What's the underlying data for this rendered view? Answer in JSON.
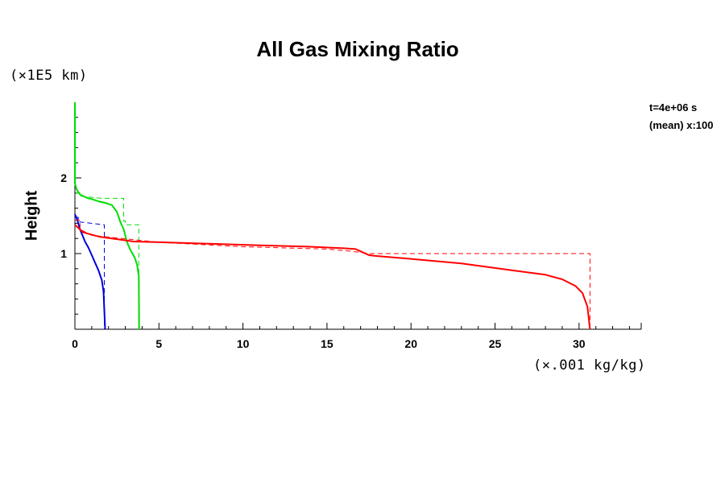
{
  "chart_data": {
    "type": "line",
    "title": "All Gas Mixing Ratio",
    "xlabel": "",
    "ylabel": "Height",
    "x_unit": "(×.001 kg/kg)",
    "y_unit": "(×1E5 km)",
    "xlim": [
      0,
      33.7
    ],
    "ylim": [
      0,
      3.0
    ],
    "x_ticks": [
      0,
      5,
      10,
      15,
      20,
      25,
      30
    ],
    "y_ticks": [
      1,
      2
    ],
    "x_minor_step": 1,
    "y_minor_step": 0.2,
    "grid": false,
    "annotations": [
      "t=4e+06 s",
      "(mean) x:100"
    ],
    "series": [
      {
        "color": "#00dd00",
        "style": "solid",
        "x": [
          0,
          0,
          0.1,
          0.3,
          0.5,
          0.8,
          1.0,
          1.4,
          1.8,
          2.2,
          2.5,
          2.7,
          2.9,
          3.1,
          3.3,
          3.55,
          3.7,
          3.8,
          3.82
        ],
        "y": [
          3.0,
          1.93,
          1.85,
          1.78,
          1.76,
          1.73,
          1.72,
          1.69,
          1.67,
          1.64,
          1.55,
          1.42,
          1.32,
          1.15,
          1.05,
          0.95,
          0.85,
          0.7,
          0
        ]
      },
      {
        "color": "#00dd00",
        "style": "dashed",
        "x": [
          0.05,
          0.3,
          0.3,
          1.6,
          2.9,
          2.9,
          3.0,
          3.0,
          3.8,
          3.8
        ],
        "y": [
          1.8,
          1.8,
          1.76,
          1.73,
          1.73,
          1.43,
          1.43,
          1.38,
          1.38,
          0
        ]
      },
      {
        "color": "#0000dd",
        "style": "solid",
        "x": [
          0,
          0.15,
          0.3,
          0.45,
          0.6,
          0.8,
          1.0,
          1.2,
          1.4,
          1.6,
          1.7,
          1.8
        ],
        "y": [
          1.52,
          1.44,
          1.32,
          1.24,
          1.16,
          1.08,
          0.98,
          0.88,
          0.78,
          0.65,
          0.5,
          0
        ]
      },
      {
        "color": "#0000dd",
        "style": "dashed",
        "x": [
          0.05,
          0.2,
          0.2,
          1.75,
          1.75
        ],
        "y": [
          1.48,
          1.48,
          1.42,
          1.38,
          0
        ]
      },
      {
        "color": "#ff0000",
        "style": "solid",
        "x": [
          0,
          0.5,
          1.5,
          2.5,
          3.5,
          5,
          8,
          11,
          14,
          16,
          16.7,
          17,
          17.5,
          17.8,
          20,
          23,
          26,
          28,
          29,
          29.8,
          30.2,
          30.5,
          30.65
        ],
        "y": [
          1.38,
          1.28,
          1.22,
          1.19,
          1.16,
          1.15,
          1.13,
          1.11,
          1.09,
          1.07,
          1.06,
          1.03,
          0.98,
          0.97,
          0.93,
          0.87,
          0.78,
          0.72,
          0.66,
          0.57,
          0.48,
          0.3,
          0
        ]
      },
      {
        "color": "#ff0000",
        "style": "dashed",
        "x": [
          0,
          0.3,
          0.3,
          1.0,
          5,
          10,
          15,
          16.5,
          17.5,
          30.65,
          30.65
        ],
        "y": [
          1.44,
          1.44,
          1.32,
          1.24,
          1.15,
          1.09,
          1.06,
          1.03,
          1.0,
          1.0,
          0
        ]
      }
    ]
  }
}
